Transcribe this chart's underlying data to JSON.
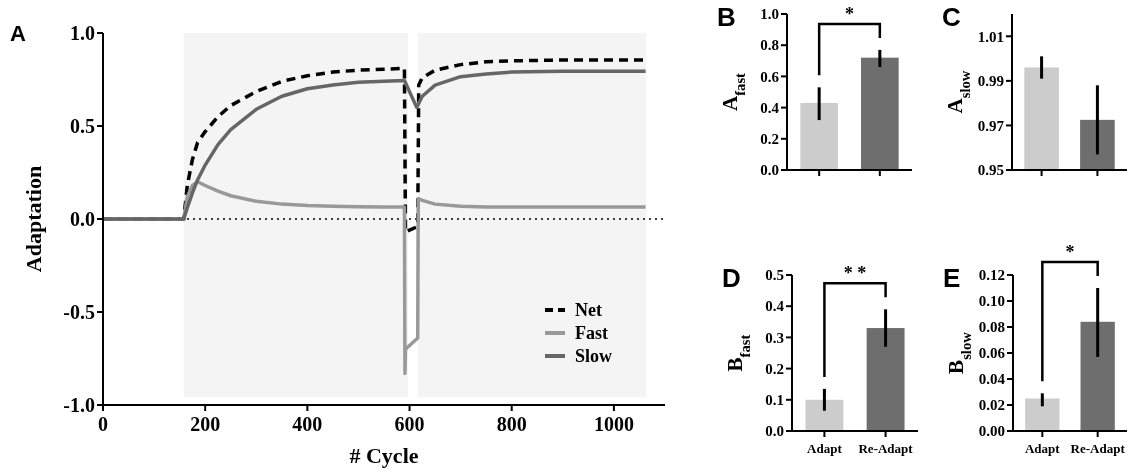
{
  "chart_data": [
    {
      "type": "line",
      "title": "A",
      "xlabel": "# Cycle",
      "ylabel": "Adaptation",
      "xlim": [
        0,
        1100
      ],
      "xticks": [
        0,
        200,
        400,
        600,
        800,
        1000
      ],
      "ylim": [
        -1.0,
        1.0
      ],
      "yticks": [
        {
          "value": -1.0,
          "label": "-1.0"
        },
        {
          "value": -0.5,
          "label": "-0.5"
        },
        {
          "value": 0,
          "label": "0.0"
        },
        {
          "value": 0.5,
          "label": "0.5"
        },
        {
          "value": 1.0,
          "label": "1.0"
        }
      ],
      "legend": "bottom right",
      "marker": "none",
      "bands": [
        {
          "axis": "x",
          "from": 158,
          "to": 597,
          "color": "#f4f4f4"
        },
        {
          "axis": "x",
          "from": 616,
          "to": 1063,
          "color": "#f4f4f4"
        }
      ],
      "ref_lines": [
        {
          "axis": "y",
          "value": 0,
          "color": "#000000",
          "line_style": "dotted"
        }
      ],
      "series": [
        {
          "name": "Net",
          "color": "#000000",
          "line_style": "dashed",
          "x": [
            0,
            158,
            165,
            175,
            185,
            200,
            225,
            250,
            300,
            350,
            400,
            450,
            500,
            550,
            590,
            592,
            616,
            618,
            625,
            650,
            700,
            750,
            800,
            900,
            1000,
            1062
          ],
          "values": [
            0,
            0,
            0.18,
            0.32,
            0.41,
            0.47,
            0.55,
            0.61,
            0.685,
            0.74,
            0.77,
            0.79,
            0.8,
            0.805,
            0.81,
            -0.07,
            -0.04,
            0.72,
            0.76,
            0.8,
            0.83,
            0.845,
            0.85,
            0.855,
            0.855,
            0.855
          ]
        },
        {
          "name": "Fast",
          "color": "#999999",
          "line_style": "solid",
          "x": [
            0,
            158,
            165,
            175,
            185,
            200,
            225,
            250,
            300,
            350,
            400,
            450,
            500,
            550,
            590,
            591,
            592,
            616,
            617,
            625,
            650,
            700,
            750,
            800,
            1000,
            1062
          ],
          "values": [
            0,
            0,
            0.12,
            0.18,
            0.2,
            0.18,
            0.15,
            0.125,
            0.095,
            0.08,
            0.072,
            0.068,
            0.066,
            0.065,
            0.065,
            -0.83,
            -0.7,
            -0.64,
            0.11,
            0.1,
            0.08,
            0.068,
            0.065,
            0.065,
            0.065,
            0.065
          ]
        },
        {
          "name": "Slow",
          "color": "#666666",
          "line_style": "solid",
          "x": [
            0,
            158,
            165,
            175,
            185,
            200,
            225,
            250,
            300,
            350,
            400,
            450,
            500,
            550,
            590,
            614,
            625,
            650,
            700,
            750,
            800,
            900,
            1000,
            1062
          ],
          "values": [
            0,
            0,
            0.06,
            0.14,
            0.21,
            0.29,
            0.4,
            0.48,
            0.59,
            0.66,
            0.7,
            0.72,
            0.735,
            0.74,
            0.745,
            0.6,
            0.66,
            0.72,
            0.765,
            0.78,
            0.79,
            0.795,
            0.795,
            0.795
          ]
        }
      ]
    },
    {
      "type": "bar",
      "title": "B",
      "ylabel": "A$_{fast}$",
      "categories": [
        null,
        null
      ],
      "values": [
        0.43,
        0.72
      ],
      "colors": [
        "#cccccc",
        "#6e6e6e"
      ],
      "errors": [
        [
          0.32,
          0.53
        ],
        [
          0.66,
          0.77
        ]
      ],
      "ylim": [
        0,
        1.0
      ],
      "yticks": [
        {
          "value": 0,
          "label": "0.0"
        },
        0.2,
        0.4,
        0.6,
        0.8,
        {
          "value": 1.0,
          "label": "1.0"
        }
      ],
      "annotations": [
        "*"
      ]
    },
    {
      "type": "bar",
      "title": "C",
      "ylabel": "A$_{slow}$",
      "categories": [
        null,
        null
      ],
      "values": [
        0.996,
        0.9725
      ],
      "colors": [
        "#cccccc",
        "#6e6e6e"
      ],
      "errors": [
        [
          0.991,
          1.001
        ],
        [
          0.957,
          0.988
        ]
      ],
      "ylim": [
        0.95,
        1.02
      ],
      "yticks": [
        0.95,
        0.97,
        0.99,
        1.01
      ]
    },
    {
      "type": "bar",
      "title": "D",
      "ylabel": "B$_{fast}$",
      "categories": [
        "Adapt",
        "Re-Adapt"
      ],
      "values": [
        0.1,
        0.33
      ],
      "colors": [
        "#cccccc",
        "#6e6e6e"
      ],
      "errors": [
        [
          0.065,
          0.135
        ],
        [
          0.27,
          0.39
        ]
      ],
      "ylim": [
        0,
        0.5
      ],
      "yticks": [
        {
          "value": 0,
          "label": "0.0"
        },
        0.1,
        0.2,
        0.3,
        0.4,
        0.5
      ],
      "annotations": [
        "* *"
      ]
    },
    {
      "type": "bar",
      "title": "E",
      "ylabel": "B$_{slow}$",
      "categories": [
        "Adapt",
        "Re-Adapt"
      ],
      "values": [
        0.025,
        0.084
      ],
      "colors": [
        "#cccccc",
        "#6e6e6e"
      ],
      "errors": [
        [
          0.019,
          0.029
        ],
        [
          0.057,
          0.11
        ]
      ],
      "ylim": [
        0,
        0.12
      ],
      "yticks": [
        {
          "value": 0,
          "label": "0.00"
        },
        0.02,
        0.04,
        0.06,
        0.08,
        {
          "value": 0.1,
          "label": "0.10"
        },
        0.12
      ],
      "annotations": [
        "*"
      ]
    }
  ]
}
